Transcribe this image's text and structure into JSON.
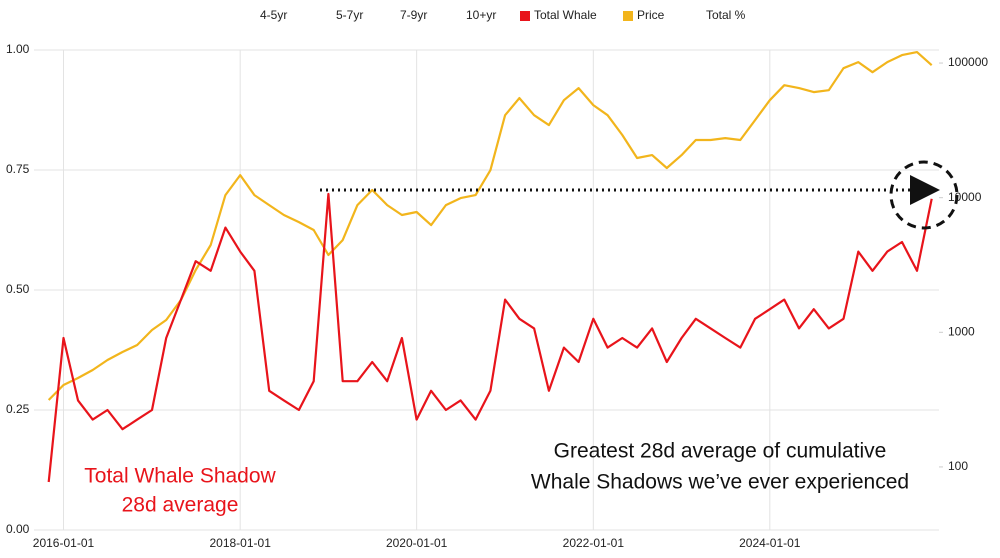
{
  "chart_data": {
    "type": "line",
    "legend_only": [
      "4-5yr",
      "5-7yr",
      "7-9yr",
      "10+yr",
      "Total %"
    ],
    "annotations": [
      [
        "Greatest 28d average of cumulative",
        "Whale Shadows we’ve ever experienced"
      ],
      [
        "Total Whale Shadow",
        "28d average"
      ]
    ],
    "x": [
      "2015-11-01",
      "2016-01-01",
      "2016-03-01",
      "2016-05-01",
      "2016-07-01",
      "2016-09-01",
      "2016-11-01",
      "2017-01-01",
      "2017-03-01",
      "2017-05-01",
      "2017-07-01",
      "2017-09-01",
      "2017-11-01",
      "2018-01-01",
      "2018-03-01",
      "2018-05-01",
      "2018-07-01",
      "2018-09-01",
      "2018-11-01",
      "2019-01-01",
      "2019-03-01",
      "2019-05-01",
      "2019-07-01",
      "2019-09-01",
      "2019-11-01",
      "2020-01-01",
      "2020-03-01",
      "2020-05-01",
      "2020-07-01",
      "2020-09-01",
      "2020-11-01",
      "2021-01-01",
      "2021-03-01",
      "2021-05-01",
      "2021-07-01",
      "2021-09-01",
      "2021-11-01",
      "2022-01-01",
      "2022-03-01",
      "2022-05-01",
      "2022-07-01",
      "2022-09-01",
      "2022-11-01",
      "2023-01-01",
      "2023-03-01",
      "2023-05-01",
      "2023-07-01",
      "2023-09-01",
      "2023-11-01",
      "2024-01-01",
      "2024-03-01",
      "2024-05-01",
      "2024-07-01",
      "2024-09-01",
      "2024-11-01",
      "2025-01-01",
      "2025-03-01",
      "2025-05-01",
      "2025-07-01",
      "2025-09-01",
      "2025-11-01"
    ],
    "series": [
      {
        "name": "Total Whale",
        "color": "#e8141b",
        "axis": "y",
        "values": [
          0.1,
          0.4,
          0.27,
          0.23,
          0.25,
          0.21,
          0.23,
          0.25,
          0.4,
          0.48,
          0.56,
          0.54,
          0.63,
          0.58,
          0.54,
          0.29,
          0.27,
          0.25,
          0.31,
          0.7,
          0.31,
          0.31,
          0.35,
          0.31,
          0.4,
          0.23,
          0.29,
          0.25,
          0.27,
          0.23,
          0.29,
          0.48,
          0.44,
          0.42,
          0.29,
          0.38,
          0.35,
          0.44,
          0.38,
          0.4,
          0.38,
          0.42,
          0.35,
          0.4,
          0.44,
          0.42,
          0.4,
          0.38,
          0.44,
          0.46,
          0.48,
          0.42,
          0.46,
          0.42,
          0.44,
          0.58,
          0.54,
          0.58,
          0.6,
          0.54,
          0.69
        ]
      },
      {
        "name": "Price",
        "color": "#f2b51c",
        "axis": "y2",
        "values": [
          314,
          406,
          458,
          525,
          623,
          714,
          805,
          1040,
          1235,
          1740,
          2900,
          4450,
          10450,
          14700,
          10450,
          8810,
          7430,
          6590,
          5750,
          3750,
          4840,
          8810,
          11400,
          8810,
          7430,
          7820,
          6260,
          8810,
          9930,
          10450,
          16000,
          41000,
          54900,
          41000,
          34600,
          53000,
          65100,
          48700,
          41000,
          29200,
          19700,
          20700,
          16600,
          20700,
          26800,
          26800,
          27700,
          26800,
          37700,
          53000,
          68500,
          65100,
          60800,
          62900,
          91600,
          101600,
          85500,
          101600,
          114500,
          120500,
          96400
        ]
      }
    ],
    "xlim": [
      "2015-09-01",
      "2025-12-01"
    ],
    "xticks": [
      "2016-01-01",
      "2018-01-01",
      "2020-01-01",
      "2022-01-01",
      "2024-01-01"
    ],
    "ylim": [
      0,
      1
    ],
    "yticks": [
      {
        "value": 0,
        "label": "0.00"
      },
      {
        "value": 0.25,
        "label": "0.25"
      },
      {
        "value": 0.5,
        "label": "0.50"
      },
      {
        "value": 0.75,
        "label": "0.75"
      },
      {
        "value": 1,
        "label": "1.00"
      }
    ],
    "y2lim": [
      34,
      125000
    ],
    "y2ticks": [
      100,
      1000,
      10000,
      100000
    ],
    "y2log": true,
    "grid": true
  }
}
